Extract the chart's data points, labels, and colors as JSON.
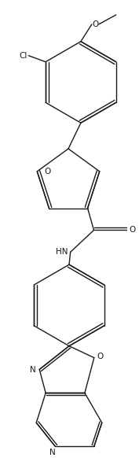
{
  "figsize": [
    1.77,
    5.82
  ],
  "dpi": 100,
  "bg_color": "#ffffff",
  "line_color": "#1a1a1a",
  "lw": 1.0,
  "fs": 7.5,
  "atoms": {
    "Cl_label": "Cl",
    "O_methoxy": "O",
    "methyl": "",
    "O_furan": "O",
    "O_carbonyl": "O",
    "NH": "HN",
    "O_oxazole": "O",
    "N_oxazole": "N",
    "N_pyridine": "N"
  }
}
